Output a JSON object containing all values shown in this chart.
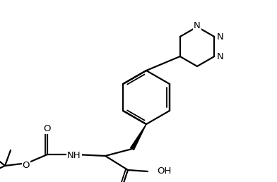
{
  "bg_color": "#ffffff",
  "lw": 1.6,
  "lw_dbl": 1.3,
  "lw_wedge": 3.5,
  "fs": 9.5,
  "figsize": [
    3.92,
    2.58
  ],
  "dpi": 100,
  "tetrazine_N_labels": [
    "N",
    "N",
    "N"
  ],
  "nh_label": "NH",
  "oh_label": "OH",
  "o_label": "O"
}
